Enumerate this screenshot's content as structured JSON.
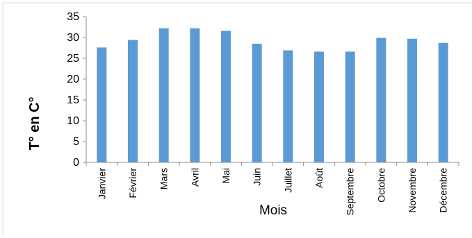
{
  "chart_data": {
    "type": "bar",
    "title": "",
    "xlabel": "Mois",
    "ylabel": "T° en C°",
    "categories": [
      "Janvier",
      "Février",
      "Mars",
      "Avril",
      "Mai",
      "Juin",
      "Juillet",
      "Août",
      "Septembre",
      "Octobre",
      "Novembre",
      "Décembre"
    ],
    "values": [
      27.6,
      29.4,
      32.2,
      32.2,
      31.6,
      28.5,
      26.9,
      26.6,
      26.6,
      29.9,
      29.7,
      28.7
    ],
    "ylim": [
      0,
      35
    ],
    "yticks": [
      "0",
      "5",
      "10",
      "15",
      "20",
      "25",
      "30",
      "35"
    ],
    "grid": false,
    "legend": "none",
    "colors": {
      "bar": "#5b9bd5",
      "axis": "#8c8c8c",
      "text": "#000000"
    }
  }
}
